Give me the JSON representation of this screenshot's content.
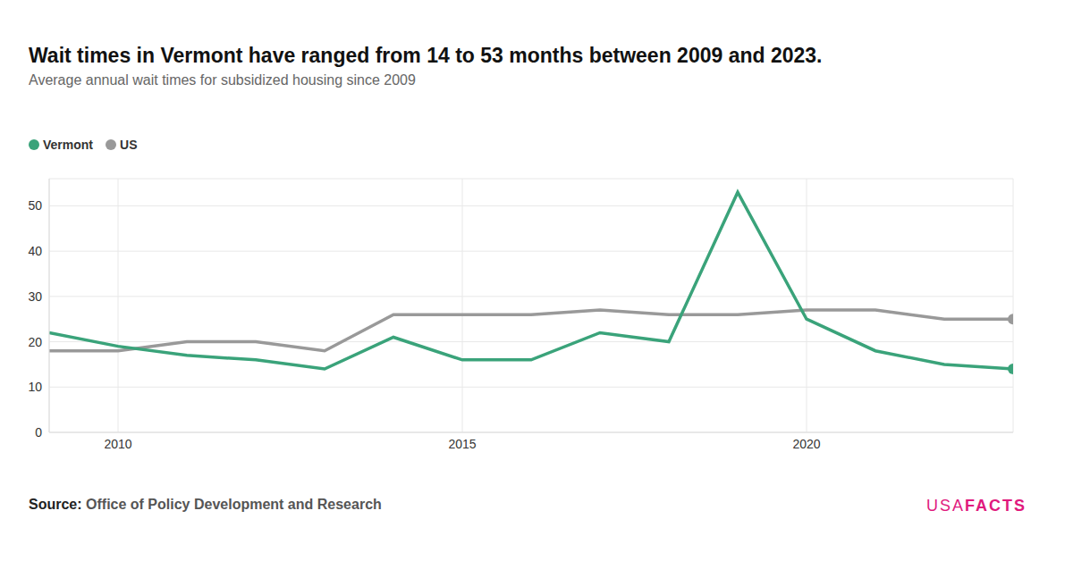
{
  "chart_data": {
    "type": "line",
    "title": "Wait times in Vermont have ranged from 14 to 53 months between 2009 and 2023.",
    "subtitle": "Average annual wait times for subsidized housing since 2009",
    "x": [
      2009,
      2010,
      2011,
      2012,
      2013,
      2014,
      2015,
      2016,
      2017,
      2018,
      2019,
      2020,
      2021,
      2022,
      2023
    ],
    "series": [
      {
        "name": "Vermont",
        "color": "#3aa37a",
        "marker": "last",
        "values": [
          22,
          19,
          17,
          16,
          14,
          21,
          16,
          16,
          22,
          20,
          53,
          25,
          18,
          15,
          14
        ]
      },
      {
        "name": "US",
        "color": "#999999",
        "marker": "last",
        "values": [
          18,
          18,
          20,
          20,
          18,
          26,
          26,
          26,
          27,
          26,
          26,
          27,
          27,
          25,
          25
        ]
      }
    ],
    "xlim": [
      2009,
      2023
    ],
    "xticks": [
      2010,
      2015,
      2020
    ],
    "ylim": [
      0,
      56
    ],
    "yticks": [
      0,
      10,
      20,
      30,
      40,
      50
    ],
    "grid": true,
    "legend": "top-left",
    "source_label": "Source:",
    "source": "Office of Policy Development and Research",
    "brand": "USAFACTS"
  }
}
